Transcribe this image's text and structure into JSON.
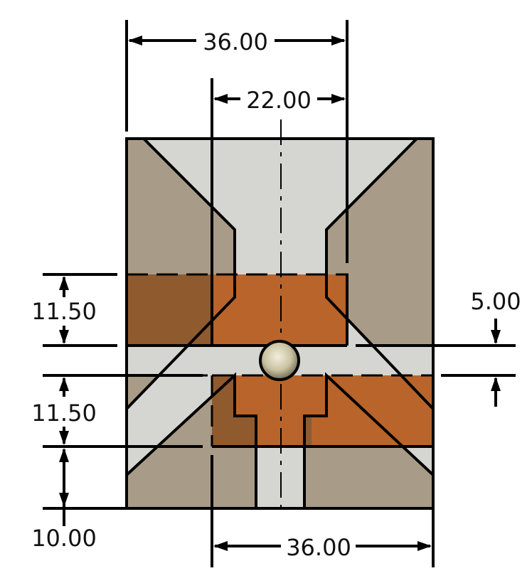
{
  "colors": {
    "body": "#a89b88",
    "cavity": "#d5d6d1",
    "copper_light": "#b8642a",
    "copper_dark": "#8f5a2e",
    "ball": "#d6d0b2",
    "line": "#000000"
  },
  "dimensions": {
    "top_width": "36.00",
    "inner_width": "22.00",
    "upper_height": "11.50",
    "lower_height": "11.50",
    "base_height": "10.00",
    "gap": "5.00",
    "bottom_width": "36.00"
  }
}
